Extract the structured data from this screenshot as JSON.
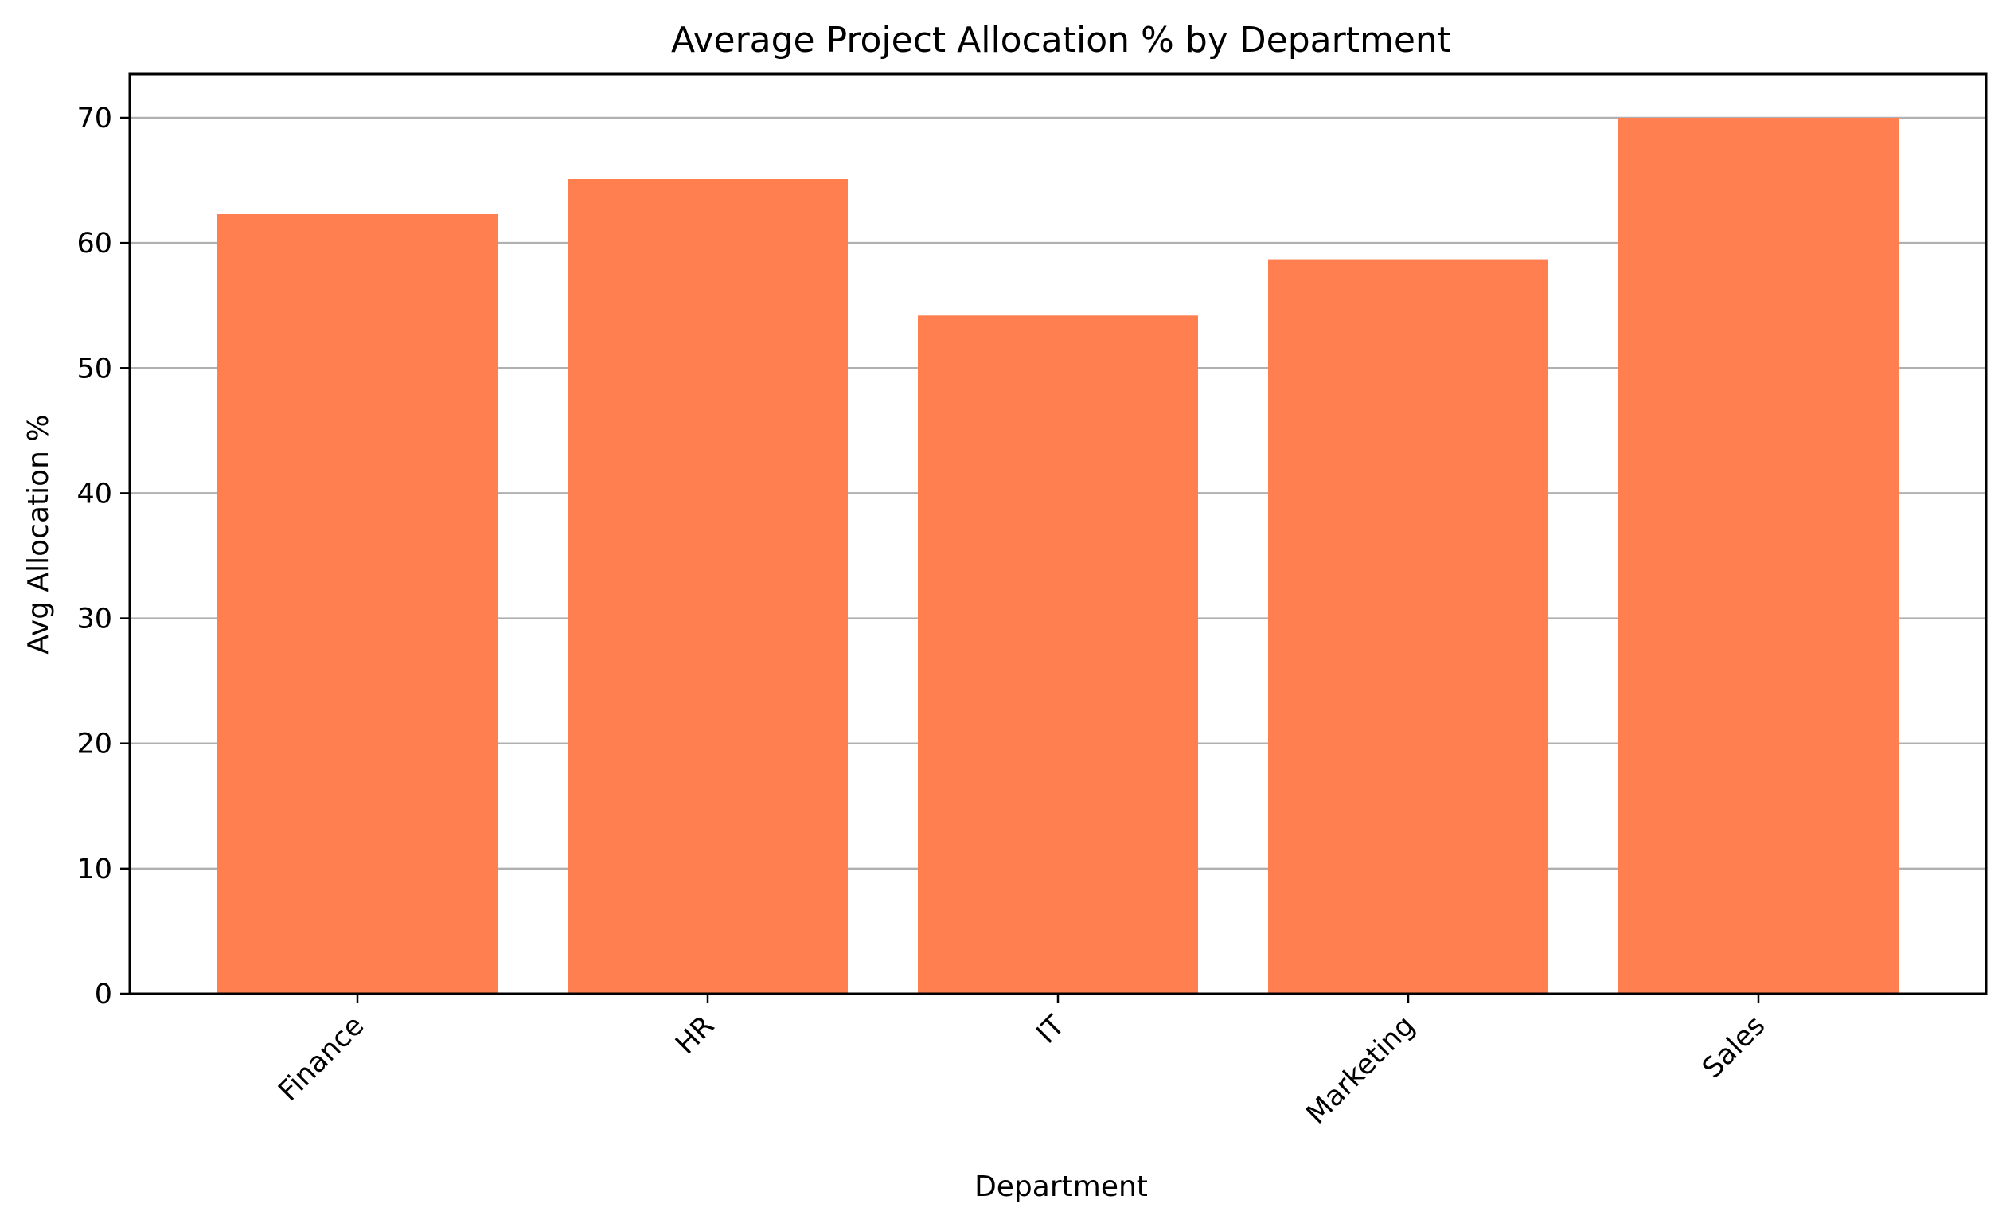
{
  "chart_data": {
    "type": "bar",
    "title": "Average Project Allocation % by Department",
    "xlabel": "Department",
    "ylabel": "Avg Allocation %",
    "categories": [
      "Finance",
      "HR",
      "IT",
      "Marketing",
      "Sales"
    ],
    "values": [
      62.3,
      65.1,
      54.2,
      58.7,
      70.0
    ],
    "ylim": [
      0,
      73.5
    ],
    "yticks": [
      0,
      10,
      20,
      30,
      40,
      50,
      60,
      70
    ],
    "grid": "horizontal",
    "legend": "none",
    "xtick_rotation_deg": 45,
    "colors": {
      "bar": "#ff7f50",
      "grid": "#b0b0b0",
      "axis": "#000000"
    }
  }
}
